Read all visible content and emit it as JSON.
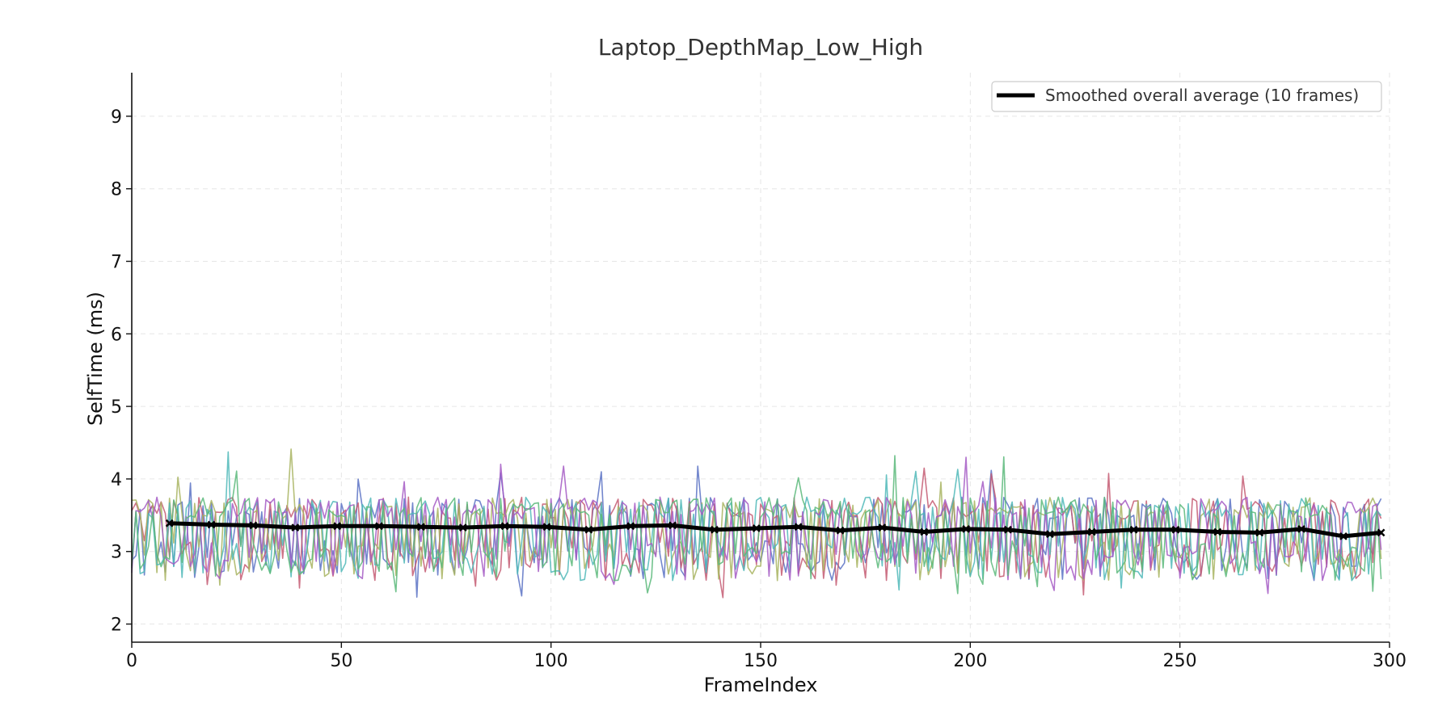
{
  "chart_data": {
    "type": "line",
    "title": "Laptop_DepthMap_Low_High",
    "xlabel": "FrameIndex",
    "ylabel": "SelfTime (ms)",
    "xlim": [
      0,
      300
    ],
    "ylim": [
      1.75,
      9.6
    ],
    "xticks": [
      0,
      50,
      100,
      150,
      200,
      250,
      300
    ],
    "yticks": [
      2,
      3,
      4,
      5,
      6,
      7,
      8,
      9
    ],
    "grid": true,
    "legend_position": "top-right",
    "noise_series": {
      "count": 6,
      "frames": [
        0,
        298
      ],
      "range": [
        2.3,
        4.5
      ],
      "baseline": 3.25,
      "colors": [
        "#5a72c4",
        "#c45a72",
        "#a8b460",
        "#4fb8b8",
        "#a45ac4",
        "#5ab87a"
      ]
    },
    "series": [
      {
        "name": "Smoothed overall average (10 frames)",
        "color": "#000000",
        "x": [
          9,
          19,
          29,
          39,
          49,
          59,
          69,
          79,
          89,
          99,
          109,
          119,
          129,
          139,
          149,
          159,
          169,
          179,
          189,
          199,
          209,
          219,
          229,
          239,
          249,
          259,
          269,
          279,
          289,
          298
        ],
        "y": [
          3.39,
          3.37,
          3.36,
          3.33,
          3.35,
          3.35,
          3.34,
          3.33,
          3.35,
          3.34,
          3.3,
          3.35,
          3.36,
          3.3,
          3.32,
          3.34,
          3.29,
          3.33,
          3.27,
          3.31,
          3.3,
          3.24,
          3.27,
          3.3,
          3.3,
          3.27,
          3.26,
          3.31,
          3.21,
          3.26
        ]
      }
    ]
  }
}
